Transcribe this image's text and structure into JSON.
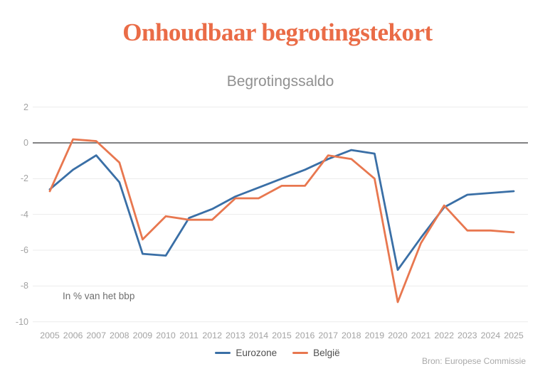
{
  "chart_data": {
    "type": "line",
    "title": "Onhoudbaar begrotingstekort",
    "subtitle": "Begrotingssaldo",
    "annotation": "In % van het bbp",
    "source": "Bron: Europese Commissie",
    "xlabel": "",
    "ylabel": "In % van het bbp",
    "x": [
      2005,
      2006,
      2007,
      2008,
      2009,
      2010,
      2011,
      2012,
      2013,
      2014,
      2015,
      2016,
      2017,
      2018,
      2019,
      2020,
      2021,
      2022,
      2023,
      2024,
      2025
    ],
    "yticks": [
      2,
      0,
      -2,
      -4,
      -6,
      -8,
      -10
    ],
    "ylim": [
      -10,
      2
    ],
    "grid": true,
    "legend_position": "bottom",
    "series": [
      {
        "name": "Eurozone",
        "color": "#3a6fa6",
        "values": [
          -2.6,
          -1.5,
          -0.7,
          -2.2,
          -6.2,
          -6.3,
          -4.2,
          -3.7,
          -3.0,
          -2.5,
          -2.0,
          -1.5,
          -0.9,
          -0.4,
          -0.6,
          -7.1,
          -5.3,
          -3.6,
          -2.9,
          -2.8,
          -2.7
        ]
      },
      {
        "name": "België",
        "color": "#e8774f",
        "values": [
          -2.7,
          0.2,
          0.1,
          -1.1,
          -5.4,
          -4.1,
          -4.3,
          -4.3,
          -3.1,
          -3.1,
          -2.4,
          -2.4,
          -0.7,
          -0.9,
          -2.0,
          -8.9,
          -5.6,
          -3.5,
          -4.9,
          -4.9,
          -5.0
        ]
      }
    ]
  },
  "theme": {
    "background": "#ffffff",
    "title_color": "#ea6c47",
    "subtitle_color": "#909090",
    "zero_axis_color": "#58585a",
    "gridline_color": "#ececec",
    "tick_label_color": "#a3a3a3",
    "annotation_color": "#6e6e6e",
    "legend_text_color": "#4f4f4f",
    "source_color": "#a9a9a9"
  }
}
